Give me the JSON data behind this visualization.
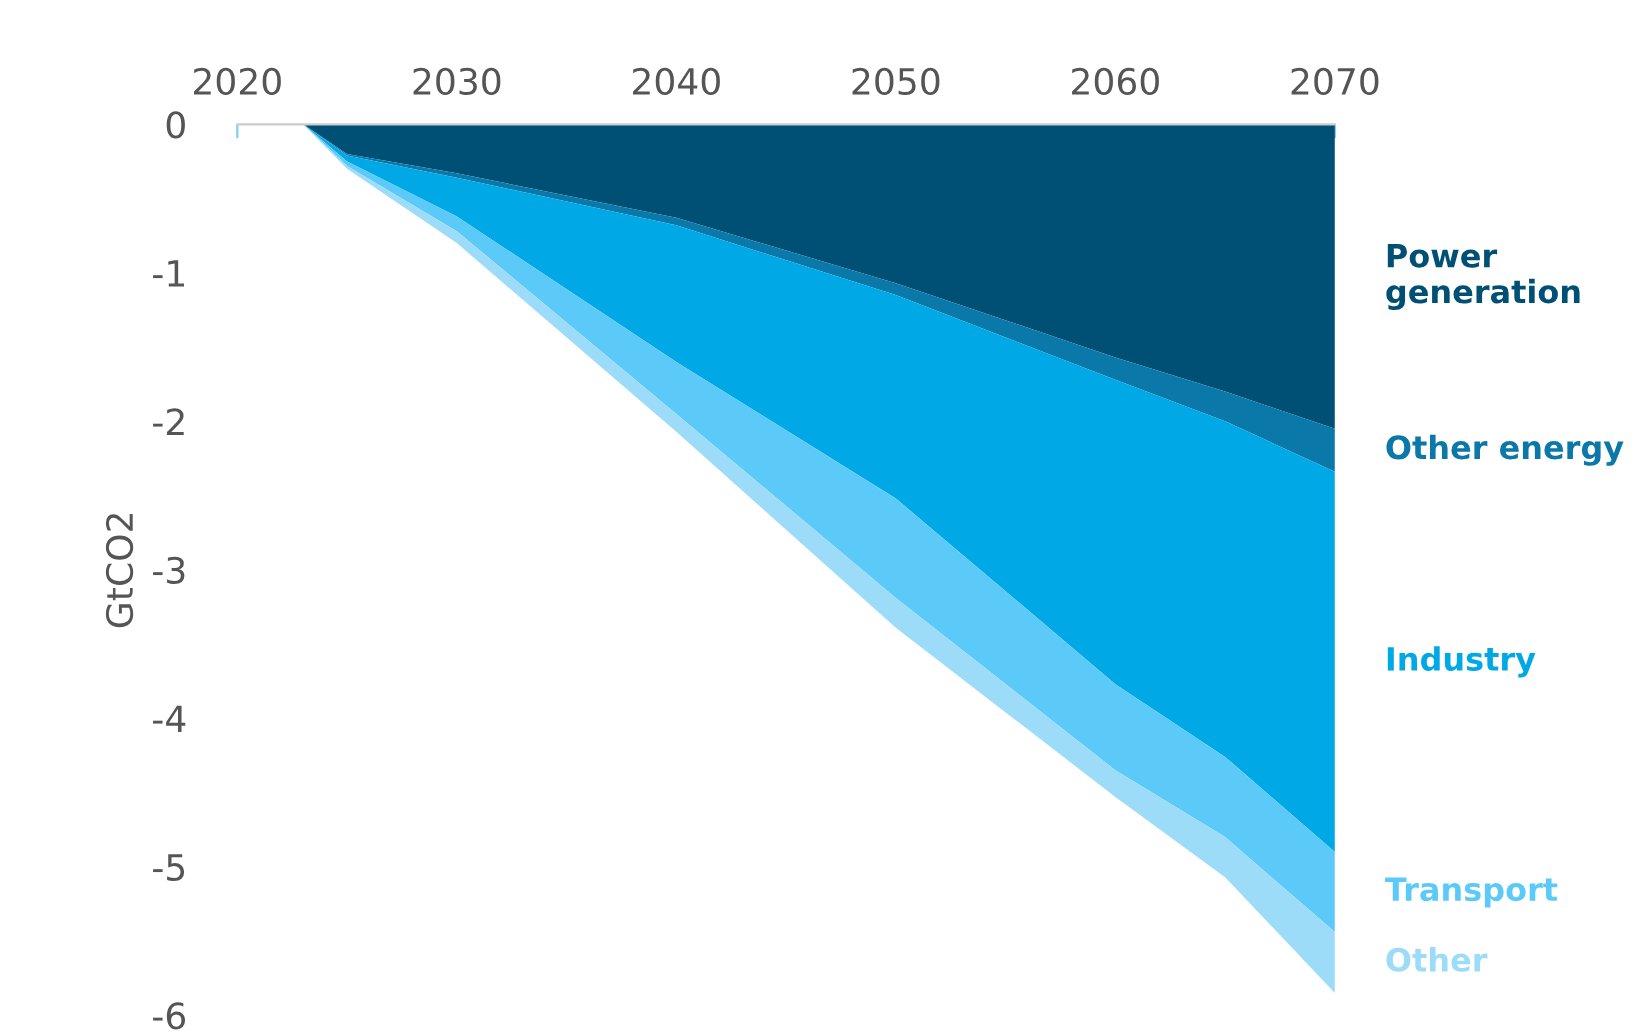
{
  "chart_data": {
    "type": "area",
    "stacked": true,
    "ylabel": "GtCO2",
    "x": [
      2023,
      2025,
      2030,
      2040,
      2050,
      2060,
      2065,
      2070
    ],
    "series": [
      {
        "name": "Power generation",
        "color": "#004f74",
        "values": [
          0,
          -0.2,
          -0.33,
          -0.63,
          -1.07,
          -1.57,
          -1.8,
          -2.05
        ]
      },
      {
        "name": "Other energy",
        "color": "#0a78a8",
        "values": [
          0,
          -0.01,
          -0.03,
          -0.05,
          -0.08,
          -0.15,
          -0.2,
          -0.29
        ]
      },
      {
        "name": "Industry",
        "color": "#00a9e6",
        "values": [
          0,
          -0.04,
          -0.26,
          -0.92,
          -1.37,
          -2.05,
          -2.26,
          -2.56
        ]
      },
      {
        "name": "Transport",
        "color": "#5ccaf8",
        "values": [
          0,
          -0.03,
          -0.1,
          -0.35,
          -0.67,
          -0.58,
          -0.54,
          -0.54
        ]
      },
      {
        "name": "Other",
        "color": "#9ddcf8",
        "values": [
          0,
          -0.02,
          -0.08,
          -0.12,
          -0.2,
          -0.18,
          -0.27,
          -0.41
        ]
      }
    ],
    "xlim": [
      2020,
      2070
    ],
    "xticks": [
      2020,
      2030,
      2040,
      2050,
      2060,
      2070
    ],
    "ylim": [
      -6,
      0
    ],
    "yticks": [
      0,
      -1,
      -2,
      -3,
      -4,
      -5,
      -6
    ],
    "grid": false,
    "legend": false
  }
}
